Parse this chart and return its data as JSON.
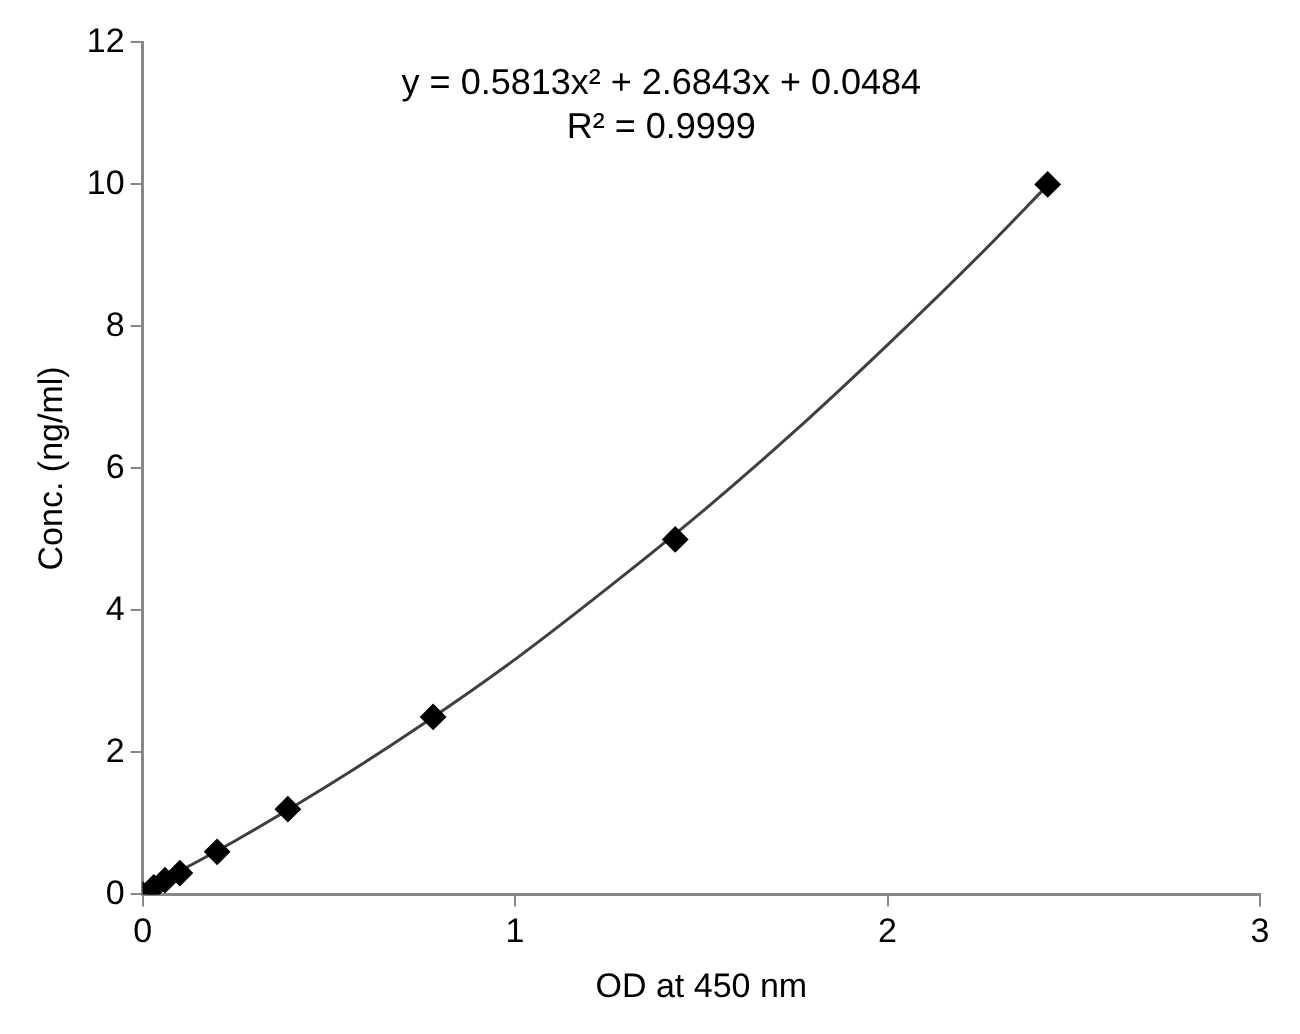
{
  "chart_data": {
    "type": "scatter",
    "xlabel": "OD at 450 nm",
    "ylabel": "Conc. (ng/ml)",
    "annotations": [
      "y = 0.5813x² + 2.6843x + 0.0484",
      "R² = 0.9999"
    ],
    "xlim": [
      0,
      3
    ],
    "xticks": [
      0,
      1,
      2,
      3
    ],
    "ylim": [
      0,
      12
    ],
    "yticks": [
      0,
      2,
      4,
      6,
      8,
      10,
      12
    ],
    "grid": false,
    "legend": false,
    "marker": "diamond",
    "series": [
      {
        "type": "scatter",
        "color": "#000000",
        "x": [
          0,
          0.03,
          0.06,
          0.1,
          0.2,
          0.39,
          0.78,
          1.43,
          2.43
        ],
        "values": [
          0,
          0.1,
          0.2,
          0.3,
          0.6,
          1.2,
          2.5,
          5,
          10
        ]
      },
      {
        "type": "line",
        "color": "#404040",
        "marker": "none",
        "line_style": "solid",
        "x": [
          0,
          0.25,
          0.5,
          0.75,
          1,
          1.25,
          1.5,
          1.75,
          2,
          2.25,
          2.43
        ],
        "values": [
          0.05,
          0.76,
          1.54,
          2.39,
          3.31,
          4.32,
          5.38,
          6.52,
          7.74,
          9.02,
          9.99
        ]
      }
    ]
  }
}
